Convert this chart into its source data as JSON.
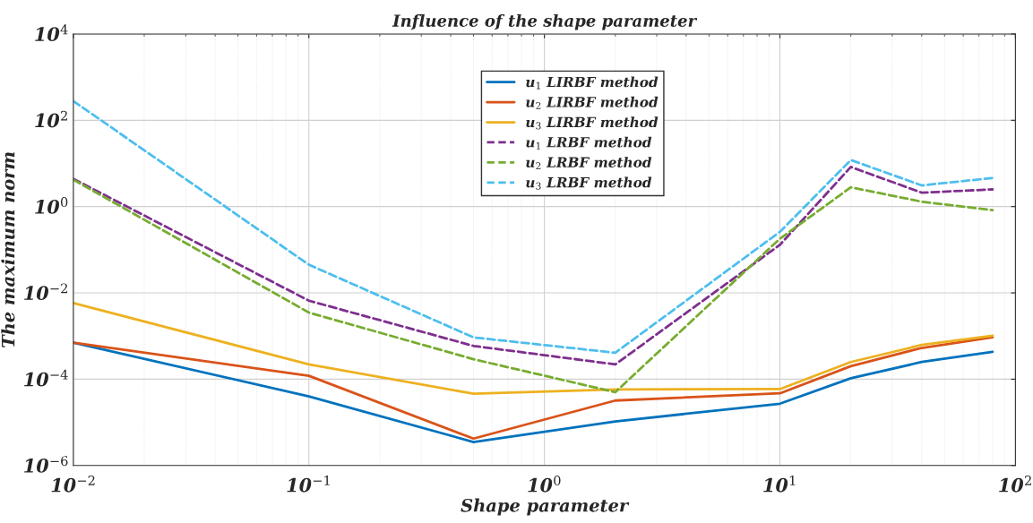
{
  "chart_data": {
    "type": "line",
    "title": "Influence of the shape parameter",
    "xlabel": "Shape parameter",
    "ylabel": "The maximum norm",
    "x": [
      0.01,
      0.1,
      0.5,
      2,
      10,
      20,
      40,
      80
    ],
    "series": [
      {
        "name": "u$_{1}$ LIRBF method",
        "color": "#0072bd",
        "line_style": "solid",
        "values": [
          0.0007,
          4e-05,
          3.5e-06,
          1.05e-05,
          2.7e-05,
          0.000105,
          0.00025,
          0.00043
        ]
      },
      {
        "name": "u$_{2}$ LIRBF method",
        "color": "#d95319",
        "line_style": "solid",
        "values": [
          0.0007,
          0.00012,
          4.2e-06,
          3.2e-05,
          4.7e-05,
          0.0002,
          0.00053,
          0.00093
        ]
      },
      {
        "name": "u$_{3}$ LIRBF method",
        "color": "#edb120",
        "line_style": "solid",
        "values": [
          0.0058,
          0.00022,
          4.6e-05,
          5.8e-05,
          5.9e-05,
          0.00025,
          0.00062,
          0.00102
        ]
      },
      {
        "name": "u$_{1}$ LRBF method",
        "color": "#7e2f8e",
        "line_style": "dashed",
        "values": [
          4.4,
          0.0066,
          0.00059,
          0.00022,
          0.13,
          8.3,
          2.1,
          2.5
        ]
      },
      {
        "name": "u$_{2}$ LRBF method",
        "color": "#77ac30",
        "line_style": "dashed",
        "values": [
          4.2,
          0.0035,
          0.00029,
          5e-05,
          0.18,
          2.8,
          1.3,
          0.83
        ]
      },
      {
        "name": "u$_{3}$ LRBF method",
        "color": "#4dbeee",
        "line_style": "dashed",
        "values": [
          280,
          0.045,
          0.00093,
          0.00041,
          0.26,
          12,
          3.1,
          4.6
        ]
      }
    ],
    "log": "xy",
    "xlim": [
      0.01,
      100
    ],
    "ylim": [
      1e-06,
      10000
    ],
    "xticks": [
      {
        "value": 0.01,
        "label": "10$^{−2}$"
      },
      {
        "value": 0.1,
        "label": "10$^{−1}$"
      },
      {
        "value": 1,
        "label": "10$^{0}$"
      },
      {
        "value": 10,
        "label": "10$^{1}$"
      },
      {
        "value": 100,
        "label": "10$^{2}$"
      }
    ],
    "yticks": [
      {
        "value": 1e-06,
        "label": "10$^{−6}$"
      },
      {
        "value": 0.0001,
        "label": "10$^{−4}$"
      },
      {
        "value": 0.01,
        "label": "10$^{−2}$"
      },
      {
        "value": 1,
        "label": "10$^{0}$"
      },
      {
        "value": 100,
        "label": "10$^{2}$"
      },
      {
        "value": 10000,
        "label": "10$^{4}$"
      }
    ],
    "grid": true,
    "legend": "top",
    "marker": "none"
  }
}
